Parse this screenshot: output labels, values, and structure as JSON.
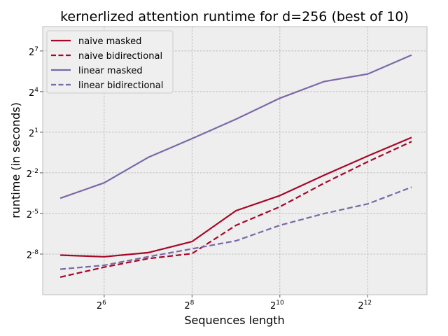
{
  "chart_data": {
    "type": "line",
    "title": "kernerlized attention runtime for d=256 (best of 10)",
    "xlabel": "Sequences length",
    "ylabel": "runtime (in seconds)",
    "xscale": "log2",
    "yscale": "log2",
    "xlim_exp": [
      4.6,
      13.35
    ],
    "ylim_exp": [
      -11.0,
      8.8
    ],
    "xticks": [
      {
        "exp": 6,
        "base": "2",
        "sup": "6"
      },
      {
        "exp": 8,
        "base": "2",
        "sup": "8"
      },
      {
        "exp": 10,
        "base": "2",
        "sup": "10"
      },
      {
        "exp": 12,
        "base": "2",
        "sup": "12"
      }
    ],
    "yticks": [
      {
        "exp": 7,
        "base": "2",
        "sup": "7"
      },
      {
        "exp": 4,
        "base": "2",
        "sup": "4"
      },
      {
        "exp": 1,
        "base": "2",
        "sup": "1"
      },
      {
        "exp": -2,
        "base": "2",
        "sup": "-2"
      },
      {
        "exp": -5,
        "base": "2",
        "sup": "-5"
      },
      {
        "exp": -8,
        "base": "2",
        "sup": "-8"
      }
    ],
    "x": [
      32,
      64,
      128,
      256,
      512,
      1024,
      2048,
      4096,
      8192
    ],
    "series": [
      {
        "name": "naive masked",
        "color": "#A60628",
        "dash": "solid",
        "values": [
          0.0037,
          0.0034,
          0.0042,
          0.0074,
          0.036,
          0.078,
          0.22,
          0.59,
          1.53
        ]
      },
      {
        "name": "naive bidirectional",
        "color": "#A60628",
        "dash": "dashed",
        "values": [
          0.0012,
          0.002,
          0.0031,
          0.004,
          0.017,
          0.044,
          0.146,
          0.44,
          1.24
        ]
      },
      {
        "name": "linear masked",
        "color": "#7A68A6",
        "dash": "solid",
        "values": [
          0.068,
          0.15,
          0.55,
          1.44,
          3.9,
          11.4,
          26.7,
          39.4,
          104
        ]
      },
      {
        "name": "linear bidirectional",
        "color": "#7A68A6",
        "dash": "dashed",
        "values": [
          0.0018,
          0.0022,
          0.0034,
          0.0051,
          0.0077,
          0.017,
          0.031,
          0.051,
          0.12
        ]
      }
    ],
    "legend_position": "upper-left",
    "grid": true,
    "style": {
      "axes_face": "#EEEEEE",
      "axes_edge": "#BCBCBC",
      "grid_color": "#B0B0B0"
    }
  }
}
